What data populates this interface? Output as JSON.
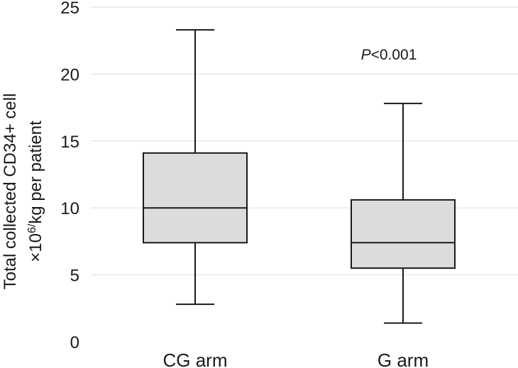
{
  "chart_data": {
    "type": "box",
    "categories": [
      "CG arm",
      "G arm"
    ],
    "boxes": [
      {
        "category": "CG arm",
        "min": 2.8,
        "q1": 7.4,
        "median": 10.0,
        "q3": 14.1,
        "max": 23.3
      },
      {
        "category": "G arm",
        "min": 1.4,
        "q1": 5.5,
        "median": 7.4,
        "q3": 10.6,
        "max": 17.8
      }
    ],
    "ylim": [
      0,
      25
    ],
    "yticks": [
      0,
      5,
      10,
      15,
      20,
      25
    ],
    "ylabel_line1": "Total collected CD34+ cell",
    "ylabel_line2_prefix": "×10",
    "ylabel_line2_exp": "6/",
    "ylabel_line2_suffix": "kg per patient",
    "annotation_italic": "P",
    "annotation_rest": "<0.001",
    "grid": true,
    "colors": {
      "box_fill": "#dcdcdc",
      "stroke": "#1a1a1a",
      "grid": "#dddddd"
    }
  }
}
